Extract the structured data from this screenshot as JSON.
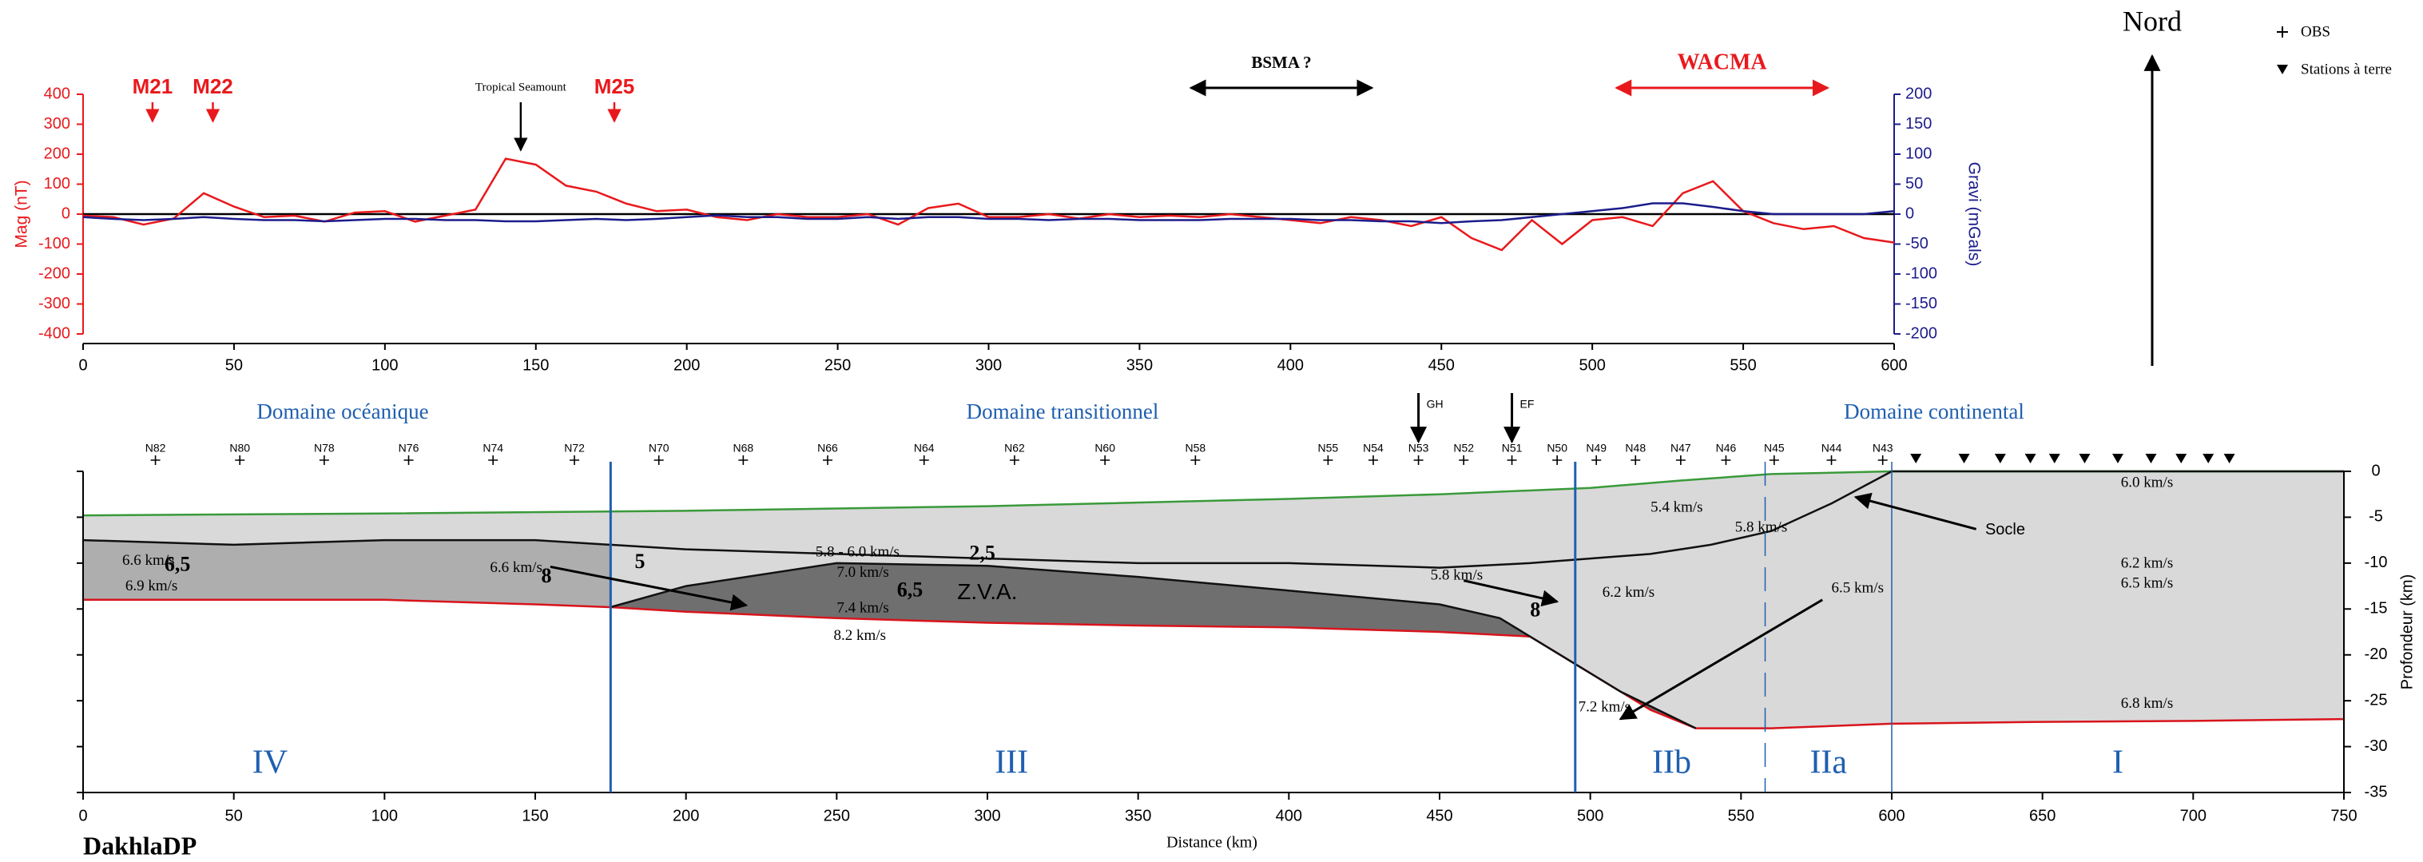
{
  "figure_title": "DakhlaDP",
  "north": "Nord",
  "legend": [
    "OBS",
    "Stations à terre"
  ],
  "chart_data": [
    {
      "type": "line",
      "ylabel": "Mag (nT)",
      "y2label": "Gravi (mGals)",
      "xlim": [
        0,
        600
      ],
      "xticks": [
        0,
        50,
        100,
        150,
        200,
        250,
        300,
        350,
        400,
        450,
        500,
        550,
        600
      ],
      "ylim": [
        -400,
        400
      ],
      "yticks": [
        -400,
        -300,
        -200,
        -100,
        0,
        100,
        200,
        300,
        400
      ],
      "y2lim": [
        -200,
        200
      ],
      "y2ticks": [
        -200,
        -150,
        -100,
        -50,
        0,
        50,
        100,
        150,
        200
      ],
      "x": [
        0,
        10,
        20,
        30,
        40,
        50,
        60,
        70,
        80,
        90,
        100,
        110,
        120,
        130,
        140,
        150,
        160,
        170,
        180,
        190,
        200,
        210,
        220,
        230,
        240,
        250,
        260,
        270,
        280,
        290,
        300,
        310,
        320,
        330,
        340,
        350,
        360,
        370,
        380,
        390,
        400,
        410,
        420,
        430,
        440,
        450,
        460,
        470,
        480,
        490,
        500,
        510,
        520,
        530,
        540,
        550,
        560,
        570,
        580,
        590,
        600
      ],
      "series": [
        {
          "color": "#e8191c",
          "values": [
            -5,
            -10,
            -35,
            -15,
            70,
            25,
            -10,
            -5,
            -25,
            5,
            10,
            -25,
            -5,
            15,
            185,
            165,
            95,
            75,
            35,
            10,
            15,
            -10,
            -20,
            0,
            -10,
            -10,
            0,
            -35,
            20,
            35,
            -10,
            -10,
            0,
            -15,
            0,
            -10,
            -5,
            -10,
            0,
            -10,
            -20,
            -30,
            -10,
            -20,
            -40,
            -10,
            -80,
            -120,
            -20,
            -100,
            -20,
            -10,
            -40,
            70,
            110,
            10,
            -30,
            -50,
            -40,
            -80,
            -95
          ]
        },
        {
          "color": "#1c1c8c",
          "axis": "y2",
          "values": [
            -5,
            -8,
            -10,
            -8,
            -5,
            -8,
            -10,
            -10,
            -12,
            -10,
            -8,
            -8,
            -10,
            -10,
            -12,
            -12,
            -10,
            -8,
            -10,
            -8,
            -5,
            -2,
            -5,
            -5,
            -8,
            -8,
            -5,
            -8,
            -5,
            -5,
            -8,
            -8,
            -10,
            -8,
            -8,
            -10,
            -10,
            -10,
            -8,
            -8,
            -8,
            -10,
            -10,
            -12,
            -12,
            -15,
            -12,
            -10,
            -5,
            0,
            5,
            10,
            18,
            18,
            12,
            5,
            0,
            0,
            0,
            0,
            5
          ]
        }
      ],
      "annotations": [
        {
          "text": "M21",
          "x": 23,
          "color": "#e8191c"
        },
        {
          "text": "M22",
          "x": 43,
          "color": "#e8191c"
        },
        {
          "text": "Tropical Seamount",
          "x": 145,
          "color": "#000000"
        },
        {
          "text": "M25",
          "x": 176,
          "color": "#e8191c"
        },
        {
          "text": "BSMA ?",
          "span": [
            367,
            427
          ],
          "color": "#000000"
        },
        {
          "text": "WACMA",
          "span": [
            508,
            578
          ],
          "color": "#e8191c"
        }
      ]
    },
    {
      "type": "section",
      "xlabel": "Distance (km)",
      "ylabel": "Profondeur (km)",
      "xlim": [
        0,
        750
      ],
      "xticks": [
        0,
        50,
        100,
        150,
        200,
        250,
        300,
        350,
        400,
        450,
        500,
        550,
        600,
        650,
        700,
        750
      ],
      "ylim": [
        -35,
        0
      ],
      "yticks": [
        0,
        -5,
        -10,
        -15,
        -20,
        -25,
        -30,
        -35
      ],
      "domains": [
        "Domaine océanique",
        "Domaine transitionnel",
        "Domaine continental"
      ],
      "regions": [
        "IV",
        "III",
        "IIb",
        "IIa",
        "I"
      ],
      "region_bounds": [
        175,
        495,
        558,
        600
      ],
      "stations": {
        "labels": [
          "N82",
          "N80",
          "N78",
          "N76",
          "N74",
          "N72",
          "N70",
          "N68",
          "N66",
          "N64",
          "N62",
          "N60",
          "N58",
          "N55",
          "N54",
          "N53",
          "N52",
          "N51",
          "N50",
          "N49",
          "N48",
          "N47",
          "N46",
          "N45",
          "N44",
          "N43"
        ],
        "x": [
          24,
          52,
          80,
          108,
          136,
          163,
          191,
          219,
          247,
          279,
          309,
          339,
          369,
          413,
          428,
          443,
          458,
          474,
          489,
          502,
          515,
          530,
          545,
          561,
          580,
          597
        ]
      },
      "land_stations": [
        608,
        624,
        636,
        646,
        654,
        664,
        675,
        686,
        696,
        705,
        712
      ],
      "markers": [
        {
          "label": "GH",
          "x": 443
        },
        {
          "label": "EF",
          "x": 474
        }
      ],
      "horizons": [
        {
          "color": "#3a9a3a",
          "x": [
            0,
            100,
            200,
            300,
            400,
            450,
            500,
            530,
            560,
            600,
            750
          ],
          "values": [
            -4.8,
            -4.6,
            -4.3,
            -3.8,
            -3,
            -2.5,
            -1.8,
            -1,
            -0.3,
            0,
            0
          ]
        },
        {
          "color": "#111111",
          "x": [
            0,
            50,
            100,
            150,
            175,
            200,
            250,
            300,
            350,
            400,
            450,
            480,
            500,
            520,
            540,
            560,
            580,
            600,
            650,
            700,
            750
          ],
          "values": [
            -7.5,
            -8,
            -7.5,
            -7.5,
            -8,
            -8.5,
            -9,
            -9.5,
            -10,
            -10,
            -10.5,
            -10,
            -9.5,
            -9,
            -8,
            -6.5,
            -3.5,
            0,
            0,
            0,
            0
          ]
        },
        {
          "color": "#d8141c",
          "x": [
            0,
            50,
            100,
            150,
            175,
            200,
            250,
            300,
            350,
            400,
            450,
            480,
            500,
            520,
            535,
            560,
            600,
            650,
            700,
            750
          ],
          "values": [
            -14,
            -14,
            -14,
            -14.5,
            -14.8,
            -15.3,
            -16,
            -16.5,
            -16.8,
            -17,
            -17.5,
            -18,
            -22,
            -26,
            -28,
            -28,
            -27.5,
            -27.3,
            -27.2,
            -27
          ]
        }
      ],
      "zva_top": {
        "x": [
          175,
          200,
          250,
          300,
          350,
          400,
          450,
          470,
          490,
          510,
          535
        ],
        "values": [
          -14.8,
          -12.5,
          -10,
          -10.3,
          -11.5,
          -13,
          -14.5,
          -16,
          -20,
          -24,
          -28
        ]
      },
      "velocity_labels": [
        "6.6 km/s",
        "6.9 km/s",
        "6.6 km/s",
        "5.8 - 6.0 km/s",
        "7.0 km/s",
        "7.4 km/s",
        "8.2 km/s",
        "5.8 km/s",
        "6.2 km/s",
        "5.4 km/s",
        "5.8 km/s",
        "6.0 km/s",
        "6.2 km/s",
        "6.5 km/s",
        "6.5 km/s",
        "7.2 km/s",
        "6.8 km/s"
      ],
      "numbers": [
        "6,5",
        "8",
        "5",
        "2,5",
        "6,5",
        "8"
      ],
      "zva": "Z.V.A.",
      "socle": "Socle"
    }
  ]
}
